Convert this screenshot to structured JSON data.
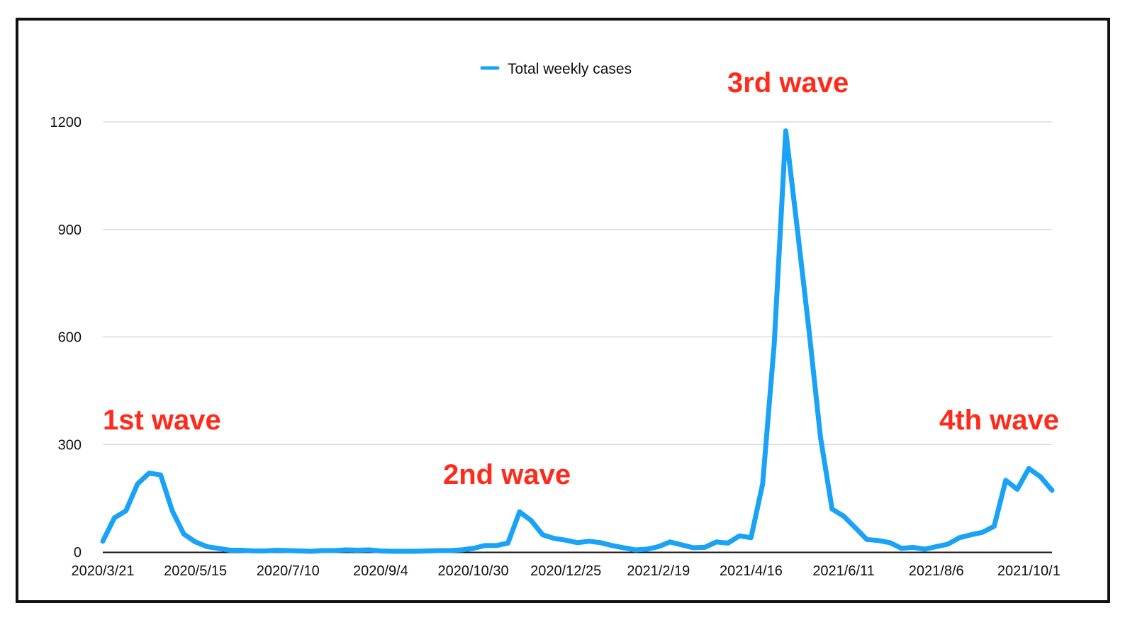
{
  "chart_data": {
    "type": "line",
    "title": "",
    "xlabel": "",
    "ylabel": "",
    "ylim": [
      0,
      1200
    ],
    "yticks": [
      0,
      300,
      600,
      900,
      1200
    ],
    "x_tick_labels": [
      "2020/3/21",
      "2020/5/15",
      "2020/7/10",
      "2020/9/4",
      "2020/10/30",
      "2020/12/25",
      "2021/2/19",
      "2021/4/16",
      "2021/6/11",
      "2021/8/6",
      "2021/10/1"
    ],
    "x_tick_index": [
      0,
      8,
      16,
      24,
      32,
      40,
      48,
      56,
      64,
      72,
      80
    ],
    "grid": "horizontal",
    "legend_position": "top-center",
    "color": "#1aa3f5",
    "series": [
      {
        "name": "Total weekly cases",
        "values": [
          30,
          95,
          115,
          190,
          220,
          215,
          115,
          50,
          28,
          15,
          10,
          5,
          5,
          3,
          3,
          5,
          4,
          3,
          2,
          4,
          4,
          6,
          5,
          6,
          3,
          2,
          2,
          2,
          3,
          4,
          4,
          6,
          10,
          18,
          18,
          25,
          112,
          88,
          48,
          38,
          33,
          26,
          30,
          26,
          18,
          12,
          6,
          8,
          15,
          28,
          20,
          12,
          13,
          28,
          25,
          45,
          40,
          190,
          580,
          1175,
          900,
          620,
          320,
          120,
          100,
          68,
          35,
          32,
          26,
          10,
          13,
          8,
          15,
          22,
          40,
          48,
          55,
          72,
          200,
          175,
          233,
          210,
          172
        ]
      }
    ],
    "annotations": [
      "1st wave",
      "2nd wave",
      "3rd wave",
      "4th wave"
    ]
  }
}
